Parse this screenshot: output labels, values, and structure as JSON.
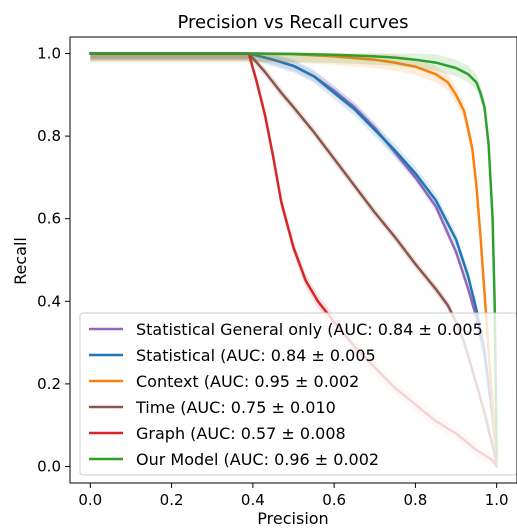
{
  "chart_data": {
    "type": "line",
    "title": "Precision vs Recall curves",
    "xlabel": "Precision",
    "ylabel": "Recall",
    "xlim": [
      -0.05,
      1.05
    ],
    "ylim": [
      -0.04,
      1.04
    ],
    "xticks": [
      0.0,
      0.2,
      0.4,
      0.6,
      0.8,
      1.0
    ],
    "yticks": [
      0.0,
      0.2,
      0.4,
      0.6,
      0.8,
      1.0
    ],
    "xtick_labels": [
      "0.0",
      "0.2",
      "0.4",
      "0.6",
      "0.8",
      "1.0"
    ],
    "ytick_labels": [
      "0.0",
      "0.2",
      "0.4",
      "0.6",
      "0.8",
      "1.0"
    ],
    "grid": false,
    "legend_position": "lower-right",
    "series": [
      {
        "name": "Statistical General only (AUC: 0.84 ± 0.005",
        "color": "#9467bd",
        "x": [
          0.0,
          0.1,
          0.2,
          0.3,
          0.39,
          0.45,
          0.5,
          0.55,
          0.6,
          0.65,
          0.7,
          0.75,
          0.8,
          0.85,
          0.9,
          0.93,
          0.95,
          0.97,
          0.99,
          1.0
        ],
        "y": [
          1.0,
          1.0,
          1.0,
          1.0,
          1.0,
          0.985,
          0.97,
          0.945,
          0.91,
          0.87,
          0.82,
          0.76,
          0.7,
          0.63,
          0.52,
          0.43,
          0.36,
          0.27,
          0.12,
          0.02
        ]
      },
      {
        "name": "Statistical (AUC: 0.84 ± 0.005",
        "color": "#1f77b4",
        "x": [
          0.0,
          0.1,
          0.2,
          0.3,
          0.39,
          0.45,
          0.5,
          0.55,
          0.6,
          0.65,
          0.7,
          0.75,
          0.8,
          0.85,
          0.9,
          0.93,
          0.95,
          0.97,
          0.99,
          1.0
        ],
        "y": [
          1.0,
          1.0,
          1.0,
          1.0,
          1.0,
          0.985,
          0.97,
          0.945,
          0.905,
          0.865,
          0.815,
          0.765,
          0.71,
          0.645,
          0.55,
          0.46,
          0.38,
          0.28,
          0.12,
          0.02
        ]
      },
      {
        "name": "Context  (AUC: 0.95 ± 0.002",
        "color": "#ff7f0e",
        "x": [
          0.0,
          0.1,
          0.2,
          0.3,
          0.4,
          0.5,
          0.6,
          0.7,
          0.75,
          0.8,
          0.85,
          0.88,
          0.9,
          0.92,
          0.94,
          0.95,
          0.96,
          0.97,
          0.98,
          0.99,
          1.0
        ],
        "y": [
          1.0,
          1.0,
          1.0,
          1.0,
          1.0,
          0.998,
          0.993,
          0.985,
          0.978,
          0.968,
          0.95,
          0.93,
          0.9,
          0.86,
          0.77,
          0.68,
          0.56,
          0.42,
          0.28,
          0.15,
          0.02
        ]
      },
      {
        "name": "Time (AUC: 0.75 ± 0.010",
        "color": "#8c564b",
        "x": [
          0.0,
          0.1,
          0.2,
          0.3,
          0.39,
          0.43,
          0.47,
          0.5,
          0.55,
          0.6,
          0.65,
          0.7,
          0.75,
          0.8,
          0.85,
          0.88,
          0.9,
          0.92,
          0.95,
          0.97,
          0.99,
          1.0
        ],
        "y": [
          1.0,
          1.0,
          1.0,
          1.0,
          1.0,
          0.955,
          0.905,
          0.87,
          0.81,
          0.745,
          0.68,
          0.615,
          0.555,
          0.49,
          0.43,
          0.39,
          0.35,
          0.3,
          0.2,
          0.13,
          0.05,
          0.01
        ]
      },
      {
        "name": "Graph (AUC: 0.57 ± 0.008",
        "color": "#d62728",
        "x": [
          0.0,
          0.1,
          0.2,
          0.3,
          0.39,
          0.41,
          0.43,
          0.45,
          0.47,
          0.5,
          0.53,
          0.56,
          0.6,
          0.65,
          0.7,
          0.75,
          0.8,
          0.85,
          0.9,
          0.95,
          0.99,
          1.0
        ],
        "y": [
          1.0,
          1.0,
          1.0,
          1.0,
          1.0,
          0.93,
          0.85,
          0.75,
          0.64,
          0.53,
          0.45,
          0.4,
          0.35,
          0.29,
          0.24,
          0.19,
          0.15,
          0.11,
          0.08,
          0.04,
          0.015,
          0.0
        ]
      },
      {
        "name": "Our Model (AUC: 0.96 ± 0.002",
        "color": "#2ca02c",
        "x": [
          0.0,
          0.1,
          0.2,
          0.3,
          0.4,
          0.5,
          0.6,
          0.7,
          0.75,
          0.8,
          0.85,
          0.9,
          0.93,
          0.95,
          0.96,
          0.97,
          0.98,
          0.99,
          0.995,
          1.0
        ],
        "y": [
          1.0,
          1.0,
          1.0,
          1.0,
          1.0,
          0.999,
          0.997,
          0.993,
          0.99,
          0.985,
          0.978,
          0.965,
          0.95,
          0.93,
          0.905,
          0.87,
          0.78,
          0.6,
          0.4,
          0.02
        ]
      }
    ]
  }
}
